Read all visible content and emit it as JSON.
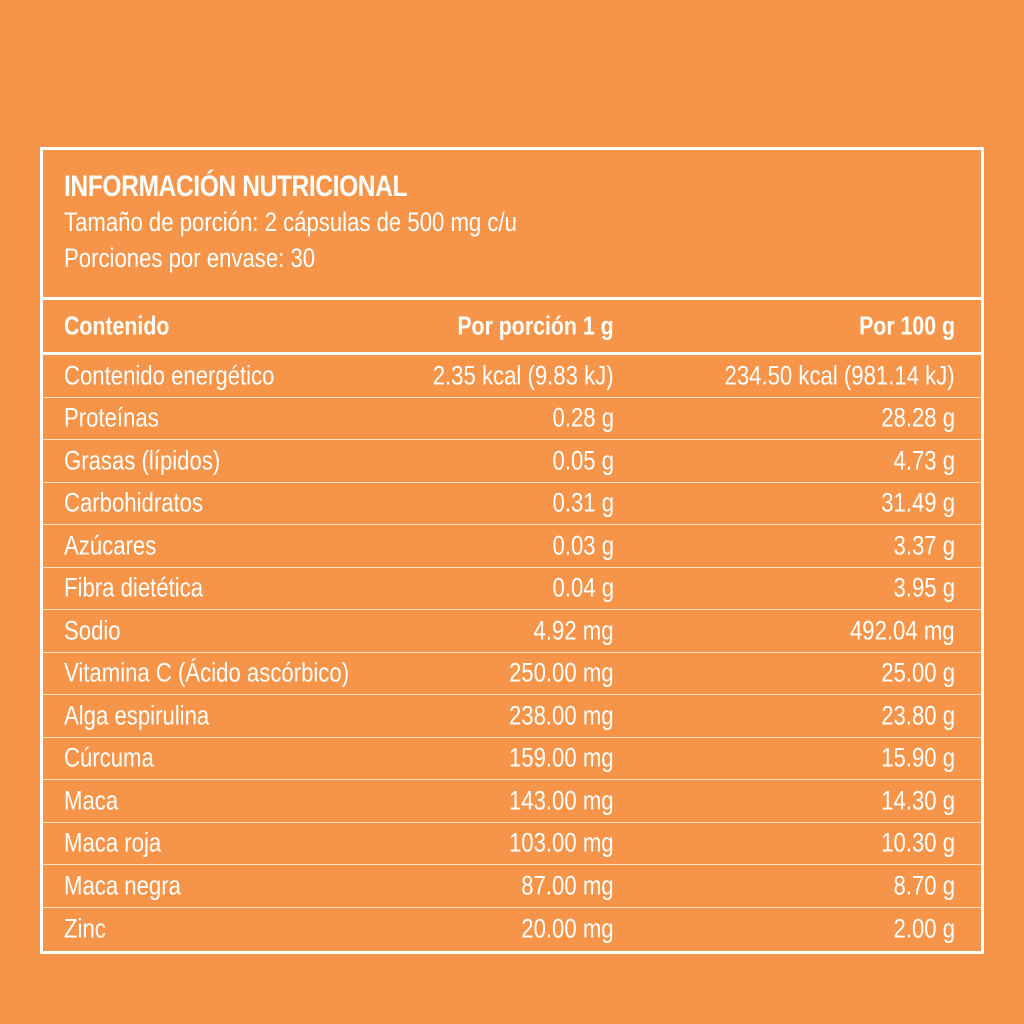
{
  "header": {
    "title": "INFORMACIÓN NUTRICIONAL",
    "serving_size": "Tamaño de porción: 2 cápsulas de 500 mg c/u",
    "servings_per_container": "Porciones por envase: 30"
  },
  "columns": {
    "content": "Contenido",
    "per_serving": "Por porción 1 g",
    "per_100g": "Por 100 g"
  },
  "rows": [
    {
      "name": "Contenido energético",
      "per_serving": "2.35 kcal (9.83 kJ)",
      "per_100g": "234.50 kcal (981.14 kJ)"
    },
    {
      "name": "Proteínas",
      "per_serving": "0.28 g",
      "per_100g": "28.28 g"
    },
    {
      "name": "Grasas (lípidos)",
      "per_serving": "0.05 g",
      "per_100g": "4.73 g"
    },
    {
      "name": "Carbohidratos",
      "per_serving": "0.31 g",
      "per_100g": "31.49 g"
    },
    {
      "name": "Azúcares",
      "per_serving": "0.03 g",
      "per_100g": "3.37 g"
    },
    {
      "name": "Fibra dietética",
      "per_serving": "0.04 g",
      "per_100g": "3.95 g"
    },
    {
      "name": "Sodio",
      "per_serving": "4.92 mg",
      "per_100g": "492.04 mg"
    },
    {
      "name": "Vitamina C (Ácido ascórbico)",
      "per_serving": "250.00 mg",
      "per_100g": "25.00 g"
    },
    {
      "name": "Alga espirulina",
      "per_serving": "238.00 mg",
      "per_100g": "23.80 g"
    },
    {
      "name": "Cúrcuma",
      "per_serving": "159.00 mg",
      "per_100g": "15.90 g"
    },
    {
      "name": "Maca",
      "per_serving": "143.00 mg",
      "per_100g": "14.30 g"
    },
    {
      "name": "Maca roja",
      "per_serving": "103.00 mg",
      "per_100g": "10.30 g"
    },
    {
      "name": "Maca negra",
      "per_serving": "87.00 mg",
      "per_100g": "8.70 g"
    },
    {
      "name": "Zinc",
      "per_serving": "20.00 mg",
      "per_100g": "2.00 g"
    }
  ],
  "colors": {
    "background": "#F69549",
    "text": "#FFFFFF",
    "border": "#FFFFFF"
  }
}
